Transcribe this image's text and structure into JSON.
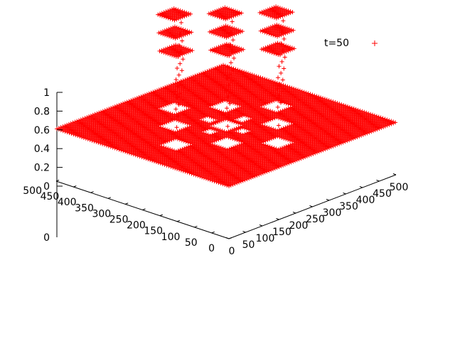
{
  "chart_data": {
    "type": "scatter",
    "projection": "3d-surface-points",
    "legend_position": "top-right",
    "series": [
      {
        "name": "t=50",
        "color": "#ff0000",
        "marker": "plus"
      }
    ],
    "xlim": [
      0,
      500
    ],
    "ylim": [
      0,
      500
    ],
    "zlim": [
      0,
      1
    ],
    "x_ticks": [
      "0",
      "50",
      "100",
      "150",
      "200",
      "250",
      "300",
      "350",
      "400",
      "450",
      "500"
    ],
    "y_ticks": [
      "0",
      "50",
      "100",
      "150",
      "200",
      "250",
      "300",
      "350",
      "400",
      "450",
      "500"
    ],
    "z_ticks": [
      "0",
      "0.2",
      "0.4",
      "0.6",
      "0.8",
      "1"
    ],
    "data_description": {
      "baseline_plane_z": 0,
      "raised_plateau_z": 1,
      "raised_regions_xy_center": [
        [
          175,
          175
        ],
        [
          325,
          175
        ],
        [
          250,
          250
        ],
        [
          175,
          325
        ],
        [
          325,
          325
        ],
        [
          250,
          100
        ],
        [
          250,
          400
        ],
        [
          100,
          250
        ],
        [
          400,
          250
        ]
      ],
      "cutout_regions_xy_center": [
        [
          200,
          250
        ],
        [
          300,
          250
        ],
        [
          250,
          200
        ],
        [
          250,
          300
        ]
      ]
    }
  }
}
